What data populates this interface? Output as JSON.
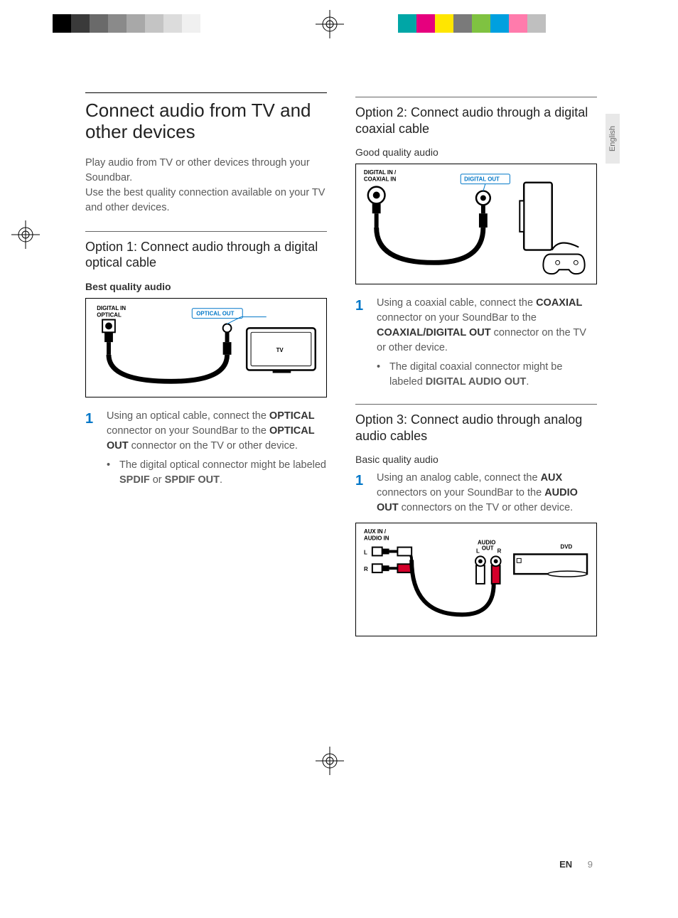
{
  "printbars": {
    "left_colors": [
      "#000000",
      "#3a3a3a",
      "#6a6a6a",
      "#8a8a8a",
      "#a8a8a8",
      "#c4c4c4",
      "#dcdcdc",
      "#f0f0f0",
      "#ffffff"
    ],
    "right_colors": [
      "#00a6a6",
      "#e6007e",
      "#ffe600",
      "#7a7a7a",
      "#7fc241",
      "#00a0df",
      "#ff7bac",
      "#bfbfbf",
      "#ffffff"
    ]
  },
  "lang_tab": "English",
  "main": {
    "title": "Connect audio from TV and other devices",
    "intro1": "Play audio from TV or other devices through your Soundbar.",
    "intro2": "Use the best quality connection available on your TV and other devices."
  },
  "opt1": {
    "heading": "Option 1: Connect audio through a digital optical cable",
    "quality": "Best quality audio",
    "step1_a": "Using an optical cable, connect the ",
    "step1_b": "OPTICAL",
    "step1_c": " connector on your SoundBar to the ",
    "step1_d": "OPTICAL OUT",
    "step1_e": " connector on the TV or other device.",
    "bullet_a": "The digital optical connector might be labeled ",
    "bullet_b": "SPDIF",
    "bullet_c": " or ",
    "bullet_d": "SPDIF OUT",
    "bullet_e": ".",
    "diag": {
      "in_label": "DIGITAL IN\nOPTICAL",
      "out_label": "OPTICAL OUT",
      "device": "TV"
    }
  },
  "opt2": {
    "heading": "Option 2: Connect audio through a digital coaxial cable",
    "quality": "Good quality audio",
    "step1_a": "Using a coaxial cable, connect the ",
    "step1_b": "COAXIAL",
    "step1_c": " connector on your SoundBar to the ",
    "step1_d": "COAXIAL/DIGITAL OUT",
    "step1_e": " connector on the TV or other device.",
    "bullet_a": "The digital coaxial connector might be labeled ",
    "bullet_b": "DIGITAL AUDIO OUT",
    "bullet_c": ".",
    "diag": {
      "in_label": "DIGITAL IN /\nCOAXIAL IN",
      "out_label": "DIGITAL OUT"
    }
  },
  "opt3": {
    "heading": "Option 3: Connect audio through analog audio cables",
    "quality": "Basic quality audio",
    "step1_a": "Using an analog cable, connect the ",
    "step1_b": "AUX",
    "step1_c": " connectors on your SoundBar to the ",
    "step1_d": "AUDIO OUT",
    "step1_e": " connectors on the TV or other device.",
    "diag": {
      "in_label": "AUX IN /\nAUDIO IN",
      "out_label": "AUDIO\nOUT",
      "device": "DVD",
      "l": "L",
      "r": "R"
    }
  },
  "footer": {
    "lang": "EN",
    "page": "9"
  },
  "colors": {
    "accent": "#0077c8",
    "text": "#5a5a5a",
    "rca_red": "#d4002a"
  }
}
